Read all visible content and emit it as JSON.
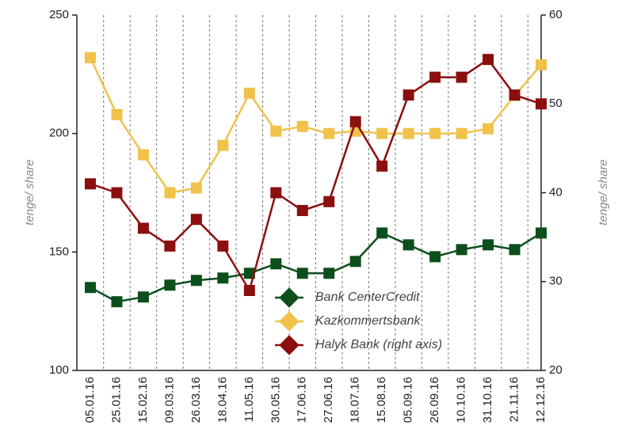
{
  "chart_data": {
    "type": "line",
    "categories": [
      "05.01.16",
      "25.01.16",
      "15.02.16",
      "09.03.16",
      "26.03.16",
      "18.04.16",
      "11.05.16",
      "30.05.16",
      "17.06.16",
      "27.06.16",
      "18.07.16",
      "15.08.16",
      "05.09.16",
      "26.09.16",
      "10.10.16",
      "31.10.16",
      "21.11.16",
      "12.12.16"
    ],
    "series": [
      {
        "name": "Bank CenterCredit",
        "color": "#0d4f1c",
        "values": [
          135,
          129,
          131,
          136,
          138,
          139,
          141,
          145,
          141,
          141,
          146,
          158,
          153,
          148,
          151,
          153,
          151,
          158
        ]
      },
      {
        "name": "Kazkommertsbank",
        "color": "#f0c24a",
        "values": [
          232,
          208,
          191,
          175,
          177,
          195,
          217,
          201,
          203,
          200,
          201,
          200,
          200,
          200,
          200,
          202,
          216,
          229
        ]
      },
      {
        "name": "Halyk Bank (right axis)",
        "color": "#8b0f0f",
        "axis": "y2",
        "values": [
          41,
          40,
          36,
          34,
          37,
          34,
          29,
          40,
          38,
          39,
          48,
          43,
          51,
          53,
          53,
          55,
          51,
          50
        ]
      }
    ],
    "ylabel": "tenge/ share",
    "y2label": "tenge/ share",
    "ylim": [
      100,
      250
    ],
    "yticks": [
      100,
      150,
      200,
      250
    ],
    "y2lim": [
      20,
      60
    ],
    "y2ticks": [
      20,
      30,
      40,
      50,
      60
    ],
    "legend": "center"
  }
}
